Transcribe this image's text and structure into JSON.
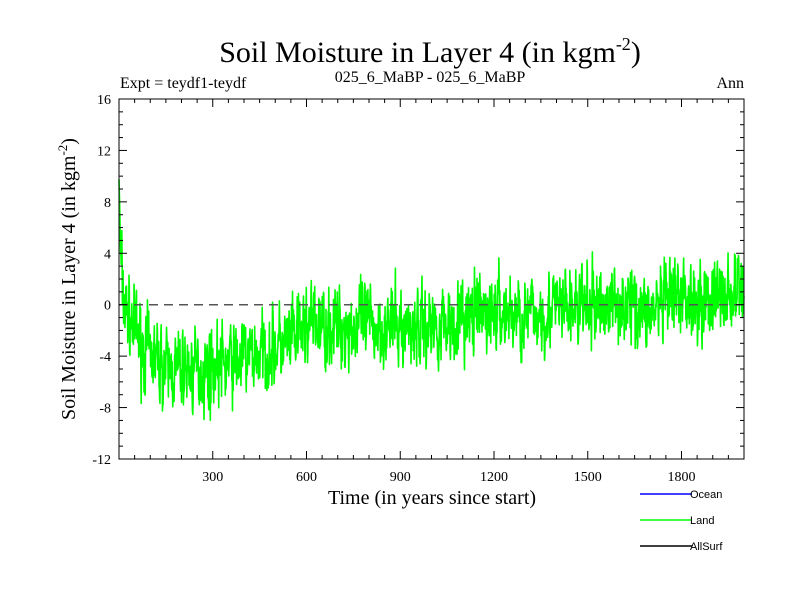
{
  "chart_data": {
    "type": "line",
    "title": "Soil Moisture in Layer 4 (in kgm",
    "title_sup": "-2",
    "title_close": ")",
    "subtitle_left": "Expt = teydf1-teydf",
    "subtitle_center": "025_6_MaBP - 025_6_MaBP",
    "subtitle_right": "Ann",
    "xlabel": "Time (in years since start)",
    "ylabel": "Soil Moisture in Layer 4 (in kgm",
    "ylabel_sup": "-2",
    "ylabel_close": ")",
    "xlim": [
      0,
      2000
    ],
    "ylim": [
      -12,
      16
    ],
    "x_ticks": [
      300,
      600,
      900,
      1200,
      1500,
      1800
    ],
    "x_tick_labels": [
      "300",
      "600",
      "900",
      "1200",
      "1500",
      "1800"
    ],
    "y_ticks": [
      -12,
      -8,
      -4,
      0,
      4,
      8,
      12,
      16
    ],
    "y_tick_labels": [
      "-12",
      "-8",
      "-4",
      "0",
      "4",
      "8",
      "12",
      "16"
    ],
    "reference_line": 0,
    "legend": [
      {
        "name": "Ocean",
        "color": "#0000ff"
      },
      {
        "name": "Land",
        "color": "#00ff00"
      },
      {
        "name": "AllSurf",
        "color": "#000000"
      }
    ],
    "series": [
      {
        "name": "Land",
        "color": "#00ff00",
        "trend": {
          "x": [
            0,
            5,
            15,
            40,
            80,
            150,
            250,
            350,
            450,
            550,
            600,
            700,
            800,
            900,
            1000,
            1100,
            1200,
            1300,
            1400,
            1500,
            1600,
            1700,
            1800,
            1900,
            2000
          ],
          "y": [
            10,
            4,
            0,
            -1.5,
            -3.5,
            -5,
            -5.2,
            -4.5,
            -3.8,
            -3,
            -1.5,
            -1.8,
            -1.5,
            -1.8,
            -1.6,
            -1.2,
            -0.5,
            -1,
            -0.3,
            -0.2,
            0.2,
            -0.5,
            0.5,
            0.5,
            1
          ]
        },
        "noise_amplitude": 2.6,
        "noise_seed": 7,
        "samples": 2000
      }
    ]
  }
}
